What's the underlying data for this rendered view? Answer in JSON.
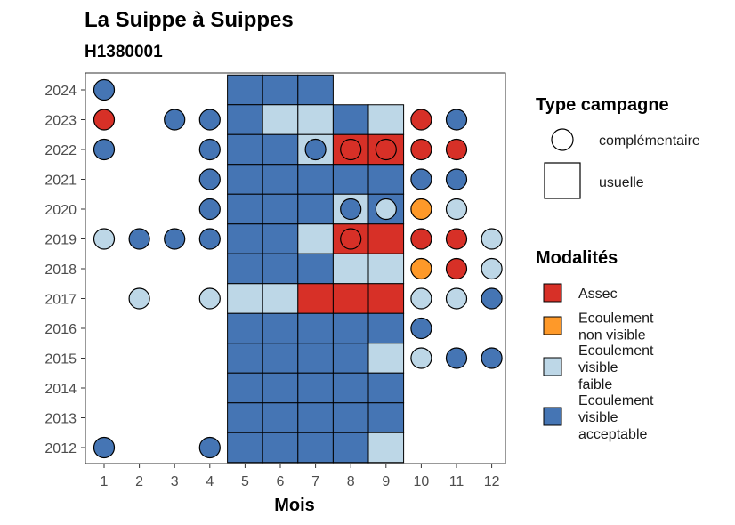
{
  "chart_data": {
    "type": "heatmap",
    "title": "La Suippe à Suippes",
    "subtitle": "H1380001",
    "xlabel": "Mois",
    "ylabel": "",
    "x_categories": [
      "1",
      "2",
      "3",
      "4",
      "5",
      "6",
      "7",
      "8",
      "9",
      "10",
      "11",
      "12"
    ],
    "y_categories": [
      "2012",
      "2013",
      "2014",
      "2015",
      "2016",
      "2017",
      "2018",
      "2019",
      "2020",
      "2021",
      "2022",
      "2023",
      "2024"
    ],
    "colors": {
      "Assec": "#d73027",
      "Ecoulement non visible": "#fe9929",
      "Ecoulement visible faible": "#bdd7e7",
      "Ecoulement visible acceptable": "#4575b4"
    },
    "legend_type": {
      "title": "Type campagne",
      "items": [
        {
          "shape": "circle",
          "label": "complémentaire"
        },
        {
          "shape": "square",
          "label": "usuelle"
        }
      ]
    },
    "legend_modalites": {
      "title": "Modalités",
      "items": [
        {
          "key": "Assec",
          "lines": [
            "Assec"
          ]
        },
        {
          "key": "Ecoulement non visible",
          "lines": [
            "Ecoulement",
            "non visible"
          ]
        },
        {
          "key": "Ecoulement visible faible",
          "lines": [
            "Ecoulement",
            "visible",
            "faible"
          ]
        },
        {
          "key": "Ecoulement visible acceptable",
          "lines": [
            "Ecoulement",
            "visible",
            "acceptable"
          ]
        }
      ]
    },
    "squares": [
      {
        "year": "2024",
        "month": 5,
        "value": "Ecoulement visible acceptable"
      },
      {
        "year": "2024",
        "month": 6,
        "value": "Ecoulement visible acceptable"
      },
      {
        "year": "2024",
        "month": 7,
        "value": "Ecoulement visible acceptable"
      },
      {
        "year": "2023",
        "month": 5,
        "value": "Ecoulement visible acceptable"
      },
      {
        "year": "2023",
        "month": 6,
        "value": "Ecoulement visible faible"
      },
      {
        "year": "2023",
        "month": 7,
        "value": "Ecoulement visible faible"
      },
      {
        "year": "2023",
        "month": 8,
        "value": "Ecoulement visible acceptable"
      },
      {
        "year": "2023",
        "month": 9,
        "value": "Ecoulement visible faible"
      },
      {
        "year": "2022",
        "month": 5,
        "value": "Ecoulement visible acceptable"
      },
      {
        "year": "2022",
        "month": 6,
        "value": "Ecoulement visible acceptable"
      },
      {
        "year": "2022",
        "month": 7,
        "value": "Ecoulement visible faible"
      },
      {
        "year": "2022",
        "month": 8,
        "value": "Assec"
      },
      {
        "year": "2022",
        "month": 9,
        "value": "Assec"
      },
      {
        "year": "2021",
        "month": 5,
        "value": "Ecoulement visible acceptable"
      },
      {
        "year": "2021",
        "month": 6,
        "value": "Ecoulement visible acceptable"
      },
      {
        "year": "2021",
        "month": 7,
        "value": "Ecoulement visible acceptable"
      },
      {
        "year": "2021",
        "month": 8,
        "value": "Ecoulement visible acceptable"
      },
      {
        "year": "2021",
        "month": 9,
        "value": "Ecoulement visible acceptable"
      },
      {
        "year": "2020",
        "month": 5,
        "value": "Ecoulement visible acceptable"
      },
      {
        "year": "2020",
        "month": 6,
        "value": "Ecoulement visible acceptable"
      },
      {
        "year": "2020",
        "month": 7,
        "value": "Ecoulement visible acceptable"
      },
      {
        "year": "2020",
        "month": 8,
        "value": "Ecoulement visible faible"
      },
      {
        "year": "2020",
        "month": 9,
        "value": "Ecoulement visible acceptable"
      },
      {
        "year": "2019",
        "month": 5,
        "value": "Ecoulement visible acceptable"
      },
      {
        "year": "2019",
        "month": 6,
        "value": "Ecoulement visible acceptable"
      },
      {
        "year": "2019",
        "month": 7,
        "value": "Ecoulement visible faible"
      },
      {
        "year": "2019",
        "month": 8,
        "value": "Assec"
      },
      {
        "year": "2019",
        "month": 9,
        "value": "Assec"
      },
      {
        "year": "2018",
        "month": 5,
        "value": "Ecoulement visible acceptable"
      },
      {
        "year": "2018",
        "month": 6,
        "value": "Ecoulement visible acceptable"
      },
      {
        "year": "2018",
        "month": 7,
        "value": "Ecoulement visible acceptable"
      },
      {
        "year": "2018",
        "month": 8,
        "value": "Ecoulement visible faible"
      },
      {
        "year": "2018",
        "month": 9,
        "value": "Ecoulement visible faible"
      },
      {
        "year": "2017",
        "month": 5,
        "value": "Ecoulement visible faible"
      },
      {
        "year": "2017",
        "month": 6,
        "value": "Ecoulement visible faible"
      },
      {
        "year": "2017",
        "month": 7,
        "value": "Assec"
      },
      {
        "year": "2017",
        "month": 8,
        "value": "Assec"
      },
      {
        "year": "2017",
        "month": 9,
        "value": "Assec"
      },
      {
        "year": "2016",
        "month": 5,
        "value": "Ecoulement visible acceptable"
      },
      {
        "year": "2016",
        "month": 6,
        "value": "Ecoulement visible acceptable"
      },
      {
        "year": "2016",
        "month": 7,
        "value": "Ecoulement visible acceptable"
      },
      {
        "year": "2016",
        "month": 8,
        "value": "Ecoulement visible acceptable"
      },
      {
        "year": "2016",
        "month": 9,
        "value": "Ecoulement visible acceptable"
      },
      {
        "year": "2015",
        "month": 5,
        "value": "Ecoulement visible acceptable"
      },
      {
        "year": "2015",
        "month": 6,
        "value": "Ecoulement visible acceptable"
      },
      {
        "year": "2015",
        "month": 7,
        "value": "Ecoulement visible acceptable"
      },
      {
        "year": "2015",
        "month": 8,
        "value": "Ecoulement visible acceptable"
      },
      {
        "year": "2015",
        "month": 9,
        "value": "Ecoulement visible faible"
      },
      {
        "year": "2014",
        "month": 5,
        "value": "Ecoulement visible acceptable"
      },
      {
        "year": "2014",
        "month": 6,
        "value": "Ecoulement visible acceptable"
      },
      {
        "year": "2014",
        "month": 7,
        "value": "Ecoulement visible acceptable"
      },
      {
        "year": "2014",
        "month": 8,
        "value": "Ecoulement visible acceptable"
      },
      {
        "year": "2014",
        "month": 9,
        "value": "Ecoulement visible acceptable"
      },
      {
        "year": "2013",
        "month": 5,
        "value": "Ecoulement visible acceptable"
      },
      {
        "year": "2013",
        "month": 6,
        "value": "Ecoulement visible acceptable"
      },
      {
        "year": "2013",
        "month": 7,
        "value": "Ecoulement visible acceptable"
      },
      {
        "year": "2013",
        "month": 8,
        "value": "Ecoulement visible acceptable"
      },
      {
        "year": "2013",
        "month": 9,
        "value": "Ecoulement visible acceptable"
      },
      {
        "year": "2012",
        "month": 5,
        "value": "Ecoulement visible acceptable"
      },
      {
        "year": "2012",
        "month": 6,
        "value": "Ecoulement visible acceptable"
      },
      {
        "year": "2012",
        "month": 7,
        "value": "Ecoulement visible acceptable"
      },
      {
        "year": "2012",
        "month": 8,
        "value": "Ecoulement visible acceptable"
      },
      {
        "year": "2012",
        "month": 9,
        "value": "Ecoulement visible faible"
      }
    ],
    "circles": [
      {
        "year": "2024",
        "month": 1,
        "value": "Ecoulement visible acceptable"
      },
      {
        "year": "2023",
        "month": 1,
        "value": "Assec"
      },
      {
        "year": "2023",
        "month": 3,
        "value": "Ecoulement visible acceptable"
      },
      {
        "year": "2023",
        "month": 4,
        "value": "Ecoulement visible acceptable"
      },
      {
        "year": "2023",
        "month": 10,
        "value": "Assec"
      },
      {
        "year": "2023",
        "month": 11,
        "value": "Ecoulement visible acceptable"
      },
      {
        "year": "2022",
        "month": 1,
        "value": "Ecoulement visible acceptable"
      },
      {
        "year": "2022",
        "month": 4,
        "value": "Ecoulement visible acceptable"
      },
      {
        "year": "2022",
        "month": 7,
        "value": "Ecoulement visible acceptable"
      },
      {
        "year": "2022",
        "month": 8,
        "value": "Assec"
      },
      {
        "year": "2022",
        "month": 9,
        "value": "Assec"
      },
      {
        "year": "2022",
        "month": 10,
        "value": "Assec"
      },
      {
        "year": "2022",
        "month": 11,
        "value": "Assec"
      },
      {
        "year": "2021",
        "month": 4,
        "value": "Ecoulement visible acceptable"
      },
      {
        "year": "2021",
        "month": 10,
        "value": "Ecoulement visible acceptable"
      },
      {
        "year": "2021",
        "month": 11,
        "value": "Ecoulement visible acceptable"
      },
      {
        "year": "2020",
        "month": 4,
        "value": "Ecoulement visible acceptable"
      },
      {
        "year": "2020",
        "month": 8,
        "value": "Ecoulement visible acceptable"
      },
      {
        "year": "2020",
        "month": 9,
        "value": "Ecoulement visible faible"
      },
      {
        "year": "2020",
        "month": 10,
        "value": "Ecoulement non visible"
      },
      {
        "year": "2020",
        "month": 11,
        "value": "Ecoulement visible faible"
      },
      {
        "year": "2019",
        "month": 1,
        "value": "Ecoulement visible faible"
      },
      {
        "year": "2019",
        "month": 2,
        "value": "Ecoulement visible acceptable"
      },
      {
        "year": "2019",
        "month": 3,
        "value": "Ecoulement visible acceptable"
      },
      {
        "year": "2019",
        "month": 4,
        "value": "Ecoulement visible acceptable"
      },
      {
        "year": "2019",
        "month": 8,
        "value": "Assec"
      },
      {
        "year": "2019",
        "month": 10,
        "value": "Assec"
      },
      {
        "year": "2019",
        "month": 11,
        "value": "Assec"
      },
      {
        "year": "2019",
        "month": 12,
        "value": "Ecoulement visible faible"
      },
      {
        "year": "2018",
        "month": 10,
        "value": "Ecoulement non visible"
      },
      {
        "year": "2018",
        "month": 11,
        "value": "Assec"
      },
      {
        "year": "2018",
        "month": 12,
        "value": "Ecoulement visible faible"
      },
      {
        "year": "2017",
        "month": 2,
        "value": "Ecoulement visible faible"
      },
      {
        "year": "2017",
        "month": 4,
        "value": "Ecoulement visible faible"
      },
      {
        "year": "2017",
        "month": 10,
        "value": "Ecoulement visible faible"
      },
      {
        "year": "2017",
        "month": 11,
        "value": "Ecoulement visible faible"
      },
      {
        "year": "2017",
        "month": 12,
        "value": "Ecoulement visible acceptable"
      },
      {
        "year": "2016",
        "month": 10,
        "value": "Ecoulement visible acceptable"
      },
      {
        "year": "2015",
        "month": 10,
        "value": "Ecoulement visible faible"
      },
      {
        "year": "2015",
        "month": 11,
        "value": "Ecoulement visible acceptable"
      },
      {
        "year": "2015",
        "month": 12,
        "value": "Ecoulement visible acceptable"
      },
      {
        "year": "2012",
        "month": 1,
        "value": "Ecoulement visible acceptable"
      },
      {
        "year": "2012",
        "month": 4,
        "value": "Ecoulement visible acceptable"
      }
    ]
  }
}
